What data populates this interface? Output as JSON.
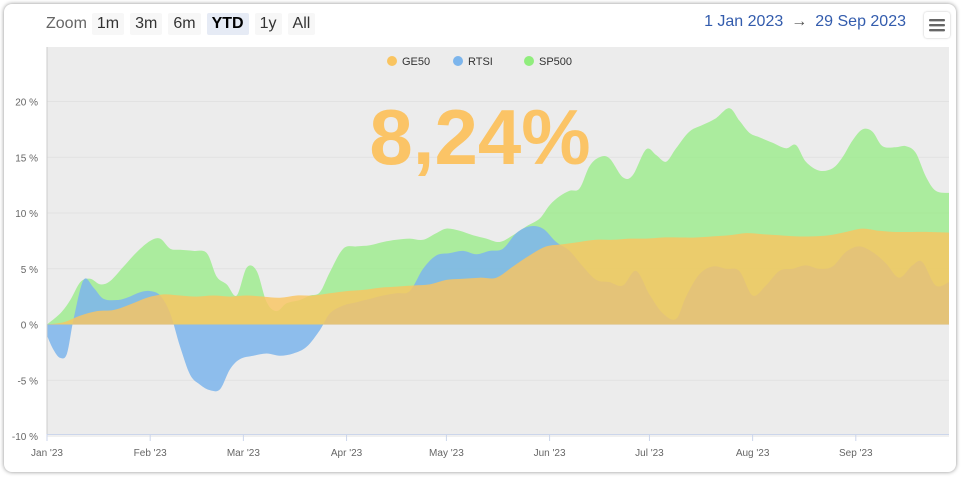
{
  "toolbar": {
    "zoom_label": "Zoom",
    "buttons": [
      "1m",
      "3m",
      "6m",
      "YTD",
      "1y",
      "All"
    ],
    "selected": "YTD"
  },
  "range": {
    "from": "1 Jan 2023",
    "arrow": "→",
    "to": "29 Sep 2023"
  },
  "menu_icon": "hamburger-menu-icon",
  "big_value": "8,24%",
  "colors": {
    "GE50": "#f9c460",
    "RTSI": "#7cb5ec",
    "SP500": "#90ed7d",
    "plot_background": "#ececec",
    "big_value": "#fbc466"
  },
  "chart_data": {
    "type": "area",
    "legend_position": "top-center",
    "grid": true,
    "x_type": "date",
    "x_range": [
      "2023-01-01",
      "2023-09-29"
    ],
    "x_ticks": [
      {
        "date": "2023-01-01",
        "label": "Jan '23"
      },
      {
        "date": "2023-02-01",
        "label": "Feb '23"
      },
      {
        "date": "2023-03-01",
        "label": "Mar '23"
      },
      {
        "date": "2023-04-01",
        "label": "Apr '23"
      },
      {
        "date": "2023-05-01",
        "label": "May '23"
      },
      {
        "date": "2023-06-01",
        "label": "Jun '23"
      },
      {
        "date": "2023-07-01",
        "label": "Jul '23"
      },
      {
        "date": "2023-08-01",
        "label": "Aug '23"
      },
      {
        "date": "2023-09-01",
        "label": "Sep '23"
      }
    ],
    "y_ticks": [
      {
        "value": 20,
        "label": "20 %"
      },
      {
        "value": 15,
        "label": "15 %"
      },
      {
        "value": 10,
        "label": "10 %"
      },
      {
        "value": 5,
        "label": "5 %"
      },
      {
        "value": 0,
        "label": "0 %"
      },
      {
        "value": -5,
        "label": "-5 %"
      },
      {
        "value": -10,
        "label": "-10 %"
      }
    ],
    "ylim": [
      -10,
      20
    ],
    "series": [
      {
        "name": "SP500",
        "color": "#90ed7d",
        "opacity": 0.7,
        "points": [
          [
            "2023-01-01",
            0.0
          ],
          [
            "2023-01-05",
            1.0
          ],
          [
            "2023-01-08",
            2.2
          ],
          [
            "2023-01-11",
            3.8
          ],
          [
            "2023-01-14",
            4.1
          ],
          [
            "2023-01-17",
            3.6
          ],
          [
            "2023-01-20",
            3.9
          ],
          [
            "2023-01-24",
            5.2
          ],
          [
            "2023-01-28",
            6.5
          ],
          [
            "2023-02-01",
            7.5
          ],
          [
            "2023-02-04",
            7.7
          ],
          [
            "2023-02-07",
            6.8
          ],
          [
            "2023-02-10",
            6.7
          ],
          [
            "2023-02-14",
            6.6
          ],
          [
            "2023-02-18",
            6.4
          ],
          [
            "2023-02-21",
            4.3
          ],
          [
            "2023-02-24",
            3.6
          ],
          [
            "2023-02-27",
            2.6
          ],
          [
            "2023-03-02",
            5.1
          ],
          [
            "2023-03-05",
            4.8
          ],
          [
            "2023-03-08",
            2.0
          ],
          [
            "2023-03-11",
            1.2
          ],
          [
            "2023-03-14",
            1.9
          ],
          [
            "2023-03-18",
            2.2
          ],
          [
            "2023-03-21",
            2.6
          ],
          [
            "2023-03-24",
            2.9
          ],
          [
            "2023-03-27",
            4.7
          ],
          [
            "2023-03-31",
            6.8
          ],
          [
            "2023-04-04",
            7.0
          ],
          [
            "2023-04-08",
            7.1
          ],
          [
            "2023-04-12",
            7.4
          ],
          [
            "2023-04-16",
            7.6
          ],
          [
            "2023-04-20",
            7.7
          ],
          [
            "2023-04-24",
            7.6
          ],
          [
            "2023-04-28",
            8.2
          ],
          [
            "2023-05-01",
            8.6
          ],
          [
            "2023-05-05",
            8.4
          ],
          [
            "2023-05-09",
            8.0
          ],
          [
            "2023-05-13",
            7.7
          ],
          [
            "2023-05-17",
            7.4
          ],
          [
            "2023-05-21",
            8.0
          ],
          [
            "2023-05-25",
            8.8
          ],
          [
            "2023-05-29",
            9.5
          ],
          [
            "2023-06-01",
            10.7
          ],
          [
            "2023-06-04",
            11.5
          ],
          [
            "2023-06-07",
            12.0
          ],
          [
            "2023-06-10",
            12.2
          ],
          [
            "2023-06-13",
            14.2
          ],
          [
            "2023-06-16",
            15.0
          ],
          [
            "2023-06-19",
            14.9
          ],
          [
            "2023-06-23",
            13.2
          ],
          [
            "2023-06-26",
            13.4
          ],
          [
            "2023-06-30",
            15.7
          ],
          [
            "2023-07-03",
            15.2
          ],
          [
            "2023-07-06",
            14.6
          ],
          [
            "2023-07-09",
            15.8
          ],
          [
            "2023-07-13",
            17.3
          ],
          [
            "2023-07-17",
            17.9
          ],
          [
            "2023-07-21",
            18.5
          ],
          [
            "2023-07-25",
            19.4
          ],
          [
            "2023-07-28",
            18.3
          ],
          [
            "2023-07-31",
            17.2
          ],
          [
            "2023-08-03",
            16.8
          ],
          [
            "2023-08-07",
            16.3
          ],
          [
            "2023-08-11",
            15.8
          ],
          [
            "2023-08-14",
            16.1
          ],
          [
            "2023-08-17",
            14.6
          ],
          [
            "2023-08-21",
            13.8
          ],
          [
            "2023-08-25",
            14.0
          ],
          [
            "2023-08-28",
            15.0
          ],
          [
            "2023-08-31",
            16.5
          ],
          [
            "2023-09-03",
            17.5
          ],
          [
            "2023-09-06",
            17.3
          ],
          [
            "2023-09-09",
            16.0
          ],
          [
            "2023-09-13",
            15.9
          ],
          [
            "2023-09-16",
            16.0
          ],
          [
            "2023-09-19",
            15.4
          ],
          [
            "2023-09-22",
            13.3
          ],
          [
            "2023-09-25",
            12.0
          ],
          [
            "2023-09-29",
            11.8
          ]
        ]
      },
      {
        "name": "RTSI",
        "color": "#7cb5ec",
        "opacity": 0.85,
        "points": [
          [
            "2023-01-01",
            -1.0
          ],
          [
            "2023-01-03",
            -2.3
          ],
          [
            "2023-01-05",
            -3.0
          ],
          [
            "2023-01-07",
            -2.6
          ],
          [
            "2023-01-09",
            0.5
          ],
          [
            "2023-01-12",
            4.0
          ],
          [
            "2023-01-15",
            3.3
          ],
          [
            "2023-01-18",
            2.3
          ],
          [
            "2023-01-22",
            2.2
          ],
          [
            "2023-01-25",
            2.4
          ],
          [
            "2023-01-29",
            2.9
          ],
          [
            "2023-02-01",
            3.0
          ],
          [
            "2023-02-04",
            2.6
          ],
          [
            "2023-02-07",
            1.0
          ],
          [
            "2023-02-10",
            -2.0
          ],
          [
            "2023-02-13",
            -4.5
          ],
          [
            "2023-02-16",
            -5.4
          ],
          [
            "2023-02-19",
            -5.9
          ],
          [
            "2023-02-22",
            -5.8
          ],
          [
            "2023-02-25",
            -4.0
          ],
          [
            "2023-02-28",
            -3.1
          ],
          [
            "2023-03-04",
            -2.8
          ],
          [
            "2023-03-08",
            -2.6
          ],
          [
            "2023-03-12",
            -2.8
          ],
          [
            "2023-03-16",
            -2.6
          ],
          [
            "2023-03-20",
            -2.0
          ],
          [
            "2023-03-24",
            -0.5
          ],
          [
            "2023-03-27",
            1.0
          ],
          [
            "2023-03-31",
            1.7
          ],
          [
            "2023-04-04",
            2.0
          ],
          [
            "2023-04-08",
            2.3
          ],
          [
            "2023-04-12",
            2.6
          ],
          [
            "2023-04-16",
            2.8
          ],
          [
            "2023-04-20",
            3.0
          ],
          [
            "2023-04-24",
            5.0
          ],
          [
            "2023-04-28",
            6.2
          ],
          [
            "2023-05-02",
            6.4
          ],
          [
            "2023-05-06",
            6.6
          ],
          [
            "2023-05-10",
            6.3
          ],
          [
            "2023-05-14",
            6.6
          ],
          [
            "2023-05-18",
            6.8
          ],
          [
            "2023-05-22",
            8.2
          ],
          [
            "2023-05-26",
            8.8
          ],
          [
            "2023-05-30",
            8.6
          ],
          [
            "2023-06-03",
            7.4
          ],
          [
            "2023-06-07",
            6.6
          ],
          [
            "2023-06-11",
            5.2
          ],
          [
            "2023-06-15",
            4.0
          ],
          [
            "2023-06-19",
            3.8
          ],
          [
            "2023-06-23",
            3.5
          ],
          [
            "2023-06-27",
            4.8
          ],
          [
            "2023-07-01",
            2.7
          ],
          [
            "2023-07-05",
            1.0
          ],
          [
            "2023-07-09",
            0.5
          ],
          [
            "2023-07-12",
            2.5
          ],
          [
            "2023-07-16",
            4.5
          ],
          [
            "2023-07-20",
            5.2
          ],
          [
            "2023-07-24",
            5.0
          ],
          [
            "2023-07-28",
            4.8
          ],
          [
            "2023-08-01",
            2.6
          ],
          [
            "2023-08-05",
            3.5
          ],
          [
            "2023-08-09",
            4.8
          ],
          [
            "2023-08-13",
            5.0
          ],
          [
            "2023-08-17",
            5.3
          ],
          [
            "2023-08-21",
            5.0
          ],
          [
            "2023-08-25",
            5.2
          ],
          [
            "2023-08-29",
            6.5
          ],
          [
            "2023-09-02",
            7.0
          ],
          [
            "2023-09-06",
            6.5
          ],
          [
            "2023-09-10",
            5.5
          ],
          [
            "2023-09-14",
            4.2
          ],
          [
            "2023-09-18",
            5.3
          ],
          [
            "2023-09-21",
            5.6
          ],
          [
            "2023-09-25",
            3.5
          ],
          [
            "2023-09-29",
            3.8
          ]
        ]
      },
      {
        "name": "GE50",
        "color": "#f9c460",
        "opacity": 0.82,
        "points": [
          [
            "2023-01-01",
            0.0
          ],
          [
            "2023-01-06",
            0.2
          ],
          [
            "2023-01-11",
            0.8
          ],
          [
            "2023-01-16",
            1.2
          ],
          [
            "2023-01-21",
            1.3
          ],
          [
            "2023-01-26",
            1.8
          ],
          [
            "2023-01-31",
            2.4
          ],
          [
            "2023-02-05",
            2.7
          ],
          [
            "2023-02-10",
            2.6
          ],
          [
            "2023-02-15",
            2.5
          ],
          [
            "2023-02-20",
            2.6
          ],
          [
            "2023-02-25",
            2.5
          ],
          [
            "2023-03-02",
            2.6
          ],
          [
            "2023-03-07",
            2.5
          ],
          [
            "2023-03-12",
            2.4
          ],
          [
            "2023-03-17",
            2.6
          ],
          [
            "2023-03-22",
            2.6
          ],
          [
            "2023-03-27",
            2.8
          ],
          [
            "2023-04-01",
            3.0
          ],
          [
            "2023-04-06",
            3.1
          ],
          [
            "2023-04-11",
            3.3
          ],
          [
            "2023-04-16",
            3.4
          ],
          [
            "2023-04-21",
            3.5
          ],
          [
            "2023-04-26",
            3.6
          ],
          [
            "2023-05-01",
            4.0
          ],
          [
            "2023-05-06",
            4.1
          ],
          [
            "2023-05-11",
            4.2
          ],
          [
            "2023-05-16",
            4.2
          ],
          [
            "2023-05-21",
            5.2
          ],
          [
            "2023-05-26",
            6.2
          ],
          [
            "2023-05-31",
            7.0
          ],
          [
            "2023-06-05",
            7.2
          ],
          [
            "2023-06-10",
            7.4
          ],
          [
            "2023-06-15",
            7.6
          ],
          [
            "2023-06-20",
            7.6
          ],
          [
            "2023-06-25",
            7.7
          ],
          [
            "2023-06-30",
            7.7
          ],
          [
            "2023-07-05",
            7.8
          ],
          [
            "2023-07-10",
            7.8
          ],
          [
            "2023-07-15",
            7.8
          ],
          [
            "2023-07-20",
            7.9
          ],
          [
            "2023-07-25",
            8.0
          ],
          [
            "2023-07-30",
            8.2
          ],
          [
            "2023-08-04",
            8.1
          ],
          [
            "2023-08-09",
            8.0
          ],
          [
            "2023-08-14",
            7.9
          ],
          [
            "2023-08-19",
            7.9
          ],
          [
            "2023-08-24",
            8.0
          ],
          [
            "2023-08-29",
            8.3
          ],
          [
            "2023-09-03",
            8.6
          ],
          [
            "2023-09-08",
            8.4
          ],
          [
            "2023-09-13",
            8.3
          ],
          [
            "2023-09-18",
            8.3
          ],
          [
            "2023-09-23",
            8.3
          ],
          [
            "2023-09-29",
            8.24
          ]
        ]
      }
    ]
  }
}
